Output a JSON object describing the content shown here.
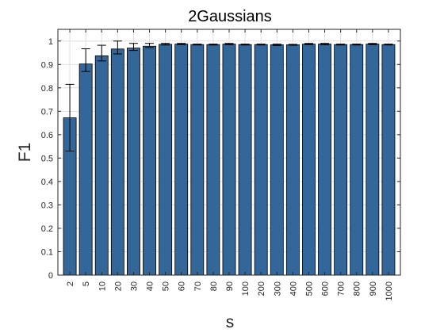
{
  "chart_data": {
    "type": "bar",
    "title": "2Gaussians",
    "xlabel": "s",
    "ylabel": "F1",
    "categories": [
      "2",
      "5",
      "10",
      "20",
      "30",
      "40",
      "50",
      "60",
      "70",
      "80",
      "90",
      "100",
      "200",
      "300",
      "400",
      "500",
      "600",
      "700",
      "800",
      "900",
      "1000"
    ],
    "values": [
      0.672,
      0.902,
      0.937,
      0.966,
      0.97,
      0.978,
      0.986,
      0.987,
      0.985,
      0.985,
      0.987,
      0.985,
      0.985,
      0.984,
      0.984,
      0.987,
      0.987,
      0.985,
      0.985,
      0.987,
      0.985
    ],
    "error_low": [
      0.53,
      0.87,
      0.915,
      0.945,
      0.96,
      0.972,
      0.983,
      0.984,
      0.983,
      0.983,
      0.984,
      0.983,
      0.983,
      0.981,
      0.982,
      0.984,
      0.984,
      0.983,
      0.983,
      0.984,
      0.983
    ],
    "error_high": [
      0.815,
      0.967,
      0.982,
      1.0,
      0.99,
      0.99,
      0.99,
      0.99,
      0.987,
      0.987,
      0.99,
      0.987,
      0.987,
      0.987,
      0.986,
      0.99,
      0.99,
      0.987,
      0.987,
      0.99,
      0.987
    ],
    "ylim": [
      0,
      1.05
    ],
    "yticks": [
      0,
      0.1,
      0.2,
      0.3,
      0.4,
      0.5,
      0.6,
      0.7,
      0.8,
      0.9,
      1
    ],
    "ytick_labels": [
      "0",
      "0.1",
      "0.2",
      "0.3",
      "0.4",
      "0.5",
      "0.6",
      "0.7",
      "0.8",
      "0.9",
      "1"
    ],
    "grid": true,
    "bar_color": "#336699",
    "edge_color": "#000000"
  }
}
